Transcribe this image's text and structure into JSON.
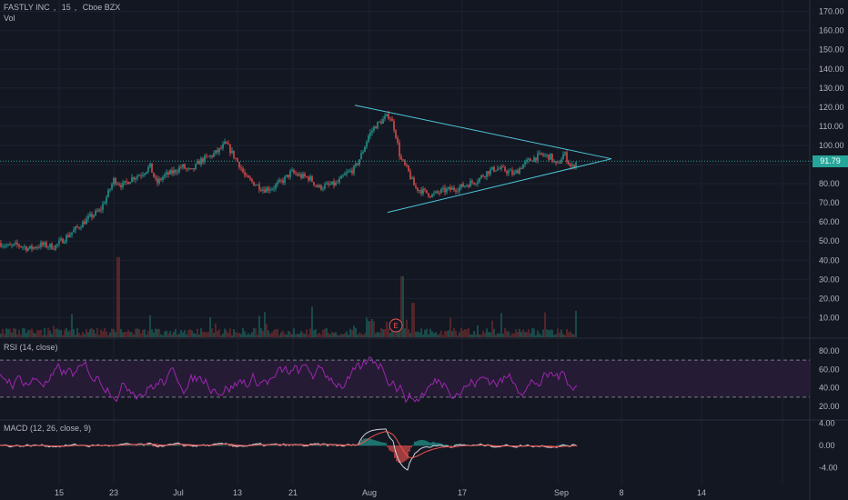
{
  "header": {
    "symbol": "FASTLY INC",
    "interval": "15",
    "exchange": "Cboe BZX",
    "volume_label": "Vol"
  },
  "rsi_panel": {
    "label": "RSI (14, close)"
  },
  "macd_panel": {
    "label": "MACD (12, 26, close, 9)"
  },
  "last_price": "91.79",
  "earnings_marker": "E",
  "colors": {
    "up": "#26a69a",
    "down": "#ef5350",
    "rsi": "#9c27b0",
    "macd": "#d1d4dc",
    "signal": "#ef5350",
    "trendline": "#4dc4d6",
    "bg": "#131722",
    "grid": "#1e2230",
    "rsi_band": "#2a1d3a"
  },
  "chart_data": [
    {
      "type": "candlestick",
      "title": "FASTLY INC, 15, Cboe BZX",
      "x_ticks": [
        "15",
        "23",
        "Jul",
        "13",
        "21",
        "Aug",
        "17",
        "Sep",
        "8",
        "14"
      ],
      "y_ticks": [
        "10.00",
        "20.00",
        "30.00",
        "40.00",
        "50.00",
        "60.00",
        "70.00",
        "80.00",
        "90.00",
        "100.00",
        "110.00",
        "120.00",
        "130.00",
        "140.00",
        "150.00",
        "160.00",
        "170.00"
      ],
      "ylim": [
        5,
        175
      ],
      "close_path": [
        {
          "x": 0,
          "y": 49
        },
        {
          "x": 10,
          "y": 47
        },
        {
          "x": 20,
          "y": 48
        },
        {
          "x": 32,
          "y": 46
        },
        {
          "x": 45,
          "y": 48
        },
        {
          "x": 60,
          "y": 47
        },
        {
          "x": 70,
          "y": 51
        },
        {
          "x": 85,
          "y": 57
        },
        {
          "x": 100,
          "y": 63
        },
        {
          "x": 110,
          "y": 66
        },
        {
          "x": 118,
          "y": 74
        },
        {
          "x": 125,
          "y": 82
        },
        {
          "x": 135,
          "y": 79
        },
        {
          "x": 145,
          "y": 83
        },
        {
          "x": 155,
          "y": 85
        },
        {
          "x": 165,
          "y": 89
        },
        {
          "x": 172,
          "y": 80
        },
        {
          "x": 180,
          "y": 84
        },
        {
          "x": 190,
          "y": 86
        },
        {
          "x": 200,
          "y": 89
        },
        {
          "x": 210,
          "y": 86
        },
        {
          "x": 220,
          "y": 92
        },
        {
          "x": 230,
          "y": 94
        },
        {
          "x": 240,
          "y": 97
        },
        {
          "x": 248,
          "y": 101
        },
        {
          "x": 255,
          "y": 96
        },
        {
          "x": 263,
          "y": 90
        },
        {
          "x": 270,
          "y": 83
        },
        {
          "x": 280,
          "y": 80
        },
        {
          "x": 290,
          "y": 77
        },
        {
          "x": 300,
          "y": 78
        },
        {
          "x": 312,
          "y": 82
        },
        {
          "x": 320,
          "y": 86
        },
        {
          "x": 330,
          "y": 84
        },
        {
          "x": 340,
          "y": 83
        },
        {
          "x": 350,
          "y": 78
        },
        {
          "x": 360,
          "y": 79
        },
        {
          "x": 370,
          "y": 80
        },
        {
          "x": 380,
          "y": 85
        },
        {
          "x": 390,
          "y": 88
        },
        {
          "x": 398,
          "y": 96
        },
        {
          "x": 405,
          "y": 105
        },
        {
          "x": 412,
          "y": 110
        },
        {
          "x": 420,
          "y": 113
        },
        {
          "x": 428,
          "y": 116
        },
        {
          "x": 434,
          "y": 108
        },
        {
          "x": 440,
          "y": 93
        },
        {
          "x": 448,
          "y": 87
        },
        {
          "x": 456,
          "y": 78
        },
        {
          "x": 465,
          "y": 76
        },
        {
          "x": 475,
          "y": 74
        },
        {
          "x": 485,
          "y": 76
        },
        {
          "x": 495,
          "y": 77
        },
        {
          "x": 505,
          "y": 78
        },
        {
          "x": 515,
          "y": 80
        },
        {
          "x": 525,
          "y": 82
        },
        {
          "x": 535,
          "y": 86
        },
        {
          "x": 545,
          "y": 88
        },
        {
          "x": 555,
          "y": 87
        },
        {
          "x": 565,
          "y": 85
        },
        {
          "x": 575,
          "y": 90
        },
        {
          "x": 585,
          "y": 93
        },
        {
          "x": 595,
          "y": 95
        },
        {
          "x": 605,
          "y": 94
        },
        {
          "x": 612,
          "y": 89
        },
        {
          "x": 620,
          "y": 96
        },
        {
          "x": 628,
          "y": 88
        },
        {
          "x": 634,
          "y": 91.79
        }
      ],
      "trendlines": [
        {
          "from": {
            "x": 390,
            "y": 121
          },
          "to": {
            "x": 672,
            "y": 93
          }
        },
        {
          "from": {
            "x": 426,
            "y": 65
          },
          "to": {
            "x": 672,
            "y": 93
          }
        }
      ]
    },
    {
      "type": "line",
      "title": "RSI (14, close)",
      "y_ticks": [
        "20.00",
        "40.00",
        "60.00",
        "80.00"
      ],
      "ylim": [
        10,
        90
      ],
      "band": [
        30,
        70
      ]
    },
    {
      "type": "line",
      "title": "MACD (12, 26, close, 9)",
      "y_ticks": [
        "-4.00",
        "0.00",
        "4.00"
      ],
      "ylim": [
        -6,
        6
      ]
    }
  ]
}
